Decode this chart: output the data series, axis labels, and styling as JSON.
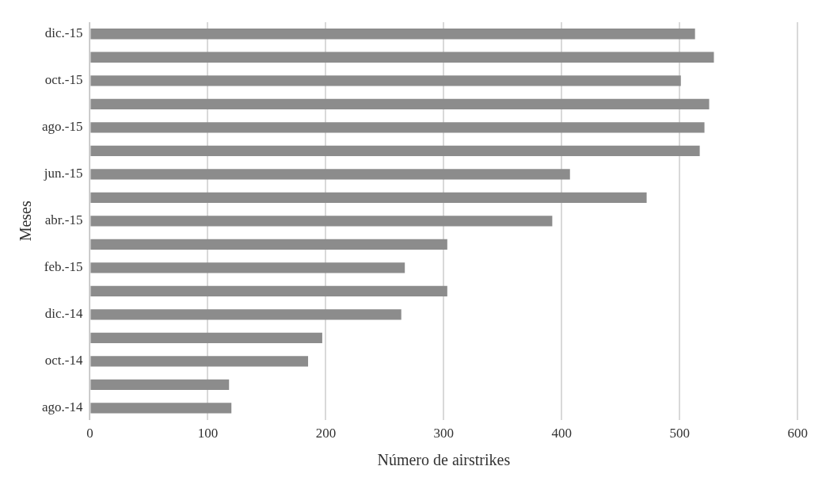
{
  "chart_data": {
    "type": "bar",
    "orientation": "horizontal",
    "xlabel": "Número de airstrikes",
    "ylabel": "Meses",
    "categories": [
      "dic.-15",
      null,
      "oct.-15",
      null,
      "ago.-15",
      null,
      "jun.-15",
      null,
      "abr.-15",
      null,
      "feb.-15",
      null,
      "dic.-14",
      null,
      "oct.-14",
      null,
      "ago.-14"
    ],
    "values": [
      513,
      529,
      501,
      525,
      521,
      517,
      407,
      472,
      392,
      303,
      267,
      303,
      264,
      197,
      185,
      118,
      120
    ],
    "color": "#8c8c8c",
    "xlim": [
      0,
      600
    ],
    "xticks": [
      0,
      100,
      200,
      300,
      400,
      500,
      600
    ],
    "grid": "x",
    "legend": false
  }
}
